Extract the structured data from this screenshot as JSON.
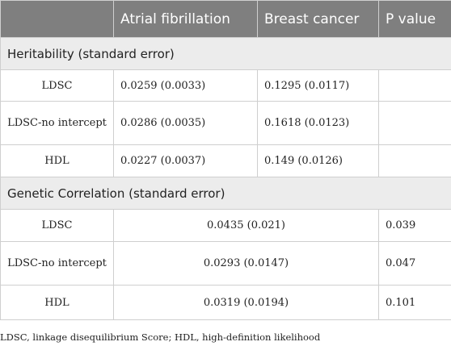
{
  "header": {
    "col0": "",
    "col1": "Atrial fibrillation",
    "col2": "Breast cancer",
    "col3": "P value"
  },
  "heritability": {
    "title": "Heritability (standard error)",
    "rows": [
      {
        "method": "LDSC",
        "af": "0.0259 (0.0033)",
        "bc": "0.1295 (0.0117)",
        "p": ""
      },
      {
        "method": "LDSC-no intercept",
        "af": "0.0286 (0.0035)",
        "bc": "0.1618 (0.0123)",
        "p": ""
      },
      {
        "method": "HDL",
        "af": "0.0227 (0.0037)",
        "bc": "0.149 (0.0126)",
        "p": ""
      }
    ]
  },
  "genetic_correlation": {
    "title": "Genetic Correlation (standard error)",
    "rows": [
      {
        "method": "LDSC",
        "value": "0.0435 (0.021)",
        "p": "0.039"
      },
      {
        "method": "LDSC-no intercept",
        "value": "0.0293 (0.0147)",
        "p": "0.047"
      },
      {
        "method": "HDL",
        "value": "0.0319 (0.0194)",
        "p": "0.101"
      }
    ]
  },
  "footnote": "LDSC, linkage disequilibrium Score; HDL, high-definition likelihood"
}
